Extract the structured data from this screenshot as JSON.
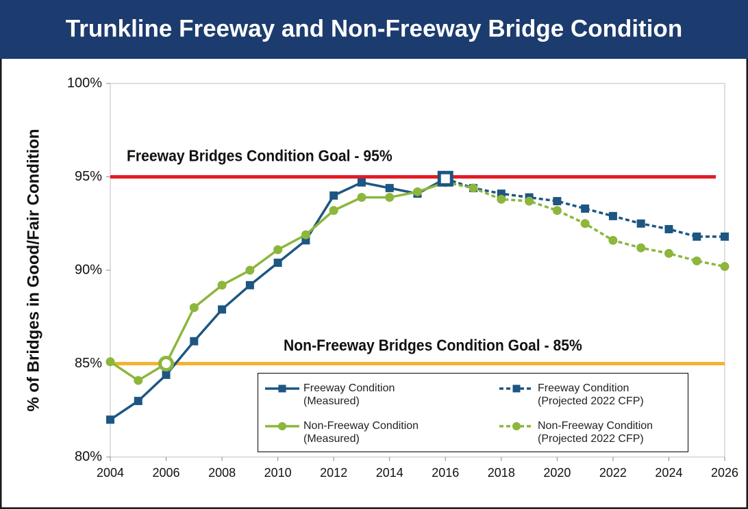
{
  "chart_data": {
    "type": "line",
    "title": "Trunkline Freeway and Non-Freeway Bridge Condition",
    "y_label": "% of Bridges in Good/Fair Condition",
    "x": [
      2004,
      2005,
      2006,
      2007,
      2008,
      2009,
      2010,
      2011,
      2012,
      2013,
      2014,
      2015,
      2016,
      2017,
      2018,
      2019,
      2020,
      2021,
      2022,
      2023,
      2024,
      2025,
      2026
    ],
    "xlim": [
      2004,
      2026
    ],
    "xticks": [
      2004,
      2006,
      2008,
      2010,
      2012,
      2014,
      2016,
      2018,
      2020,
      2022,
      2024,
      2026
    ],
    "ylim": [
      80,
      100
    ],
    "yticks": [
      {
        "value": 80,
        "label": "80%"
      },
      {
        "value": 85,
        "label": "85%"
      },
      {
        "value": 90,
        "label": "90%"
      },
      {
        "value": 95,
        "label": "95%"
      },
      {
        "value": 100,
        "label": "100%"
      }
    ],
    "reference_lines": [
      {
        "value": 95,
        "label": "Freeway Bridges Condition Goal - 95%",
        "color": "#e31b23"
      },
      {
        "value": 85,
        "label": "Non-Freeway Bridges Condition Goal - 85%",
        "color": "#f7b130"
      }
    ],
    "series": [
      {
        "name": "Freeway Condition (Measured)",
        "color": "#1d5682",
        "dashed": false,
        "marker": "square",
        "highlight": 12,
        "values": [
          82.0,
          83.0,
          84.4,
          86.2,
          87.9,
          89.2,
          90.4,
          91.6,
          94.0,
          94.7,
          94.4,
          94.1,
          94.9,
          null,
          null,
          null,
          null,
          null,
          null,
          null,
          null,
          null,
          null
        ]
      },
      {
        "name": "Freeway Condition (Projected 2022 CFP)",
        "color": "#1d5682",
        "dashed": true,
        "marker": "square",
        "values": [
          null,
          null,
          null,
          null,
          null,
          null,
          null,
          null,
          null,
          null,
          null,
          null,
          94.9,
          94.4,
          94.1,
          93.9,
          93.7,
          93.3,
          92.9,
          92.5,
          92.2,
          91.8,
          91.8
        ]
      },
      {
        "name": "Non-Freeway Condition (Measured)",
        "color": "#8cb63c",
        "dashed": false,
        "marker": "circle",
        "highlight": 2,
        "values": [
          85.1,
          84.1,
          85.0,
          88.0,
          89.2,
          90.0,
          91.1,
          91.9,
          93.2,
          93.9,
          93.9,
          94.2,
          94.7,
          null,
          null,
          null,
          null,
          null,
          null,
          null,
          null,
          null,
          null
        ]
      },
      {
        "name": "Non-Freeway Condition (Projected 2022 CFP)",
        "color": "#8cb63c",
        "dashed": true,
        "marker": "circle",
        "values": [
          null,
          null,
          null,
          null,
          null,
          null,
          null,
          null,
          null,
          null,
          null,
          null,
          94.7,
          94.4,
          93.8,
          93.7,
          93.2,
          92.5,
          91.6,
          91.2,
          90.9,
          90.5,
          90.2
        ]
      }
    ],
    "grid": false
  }
}
